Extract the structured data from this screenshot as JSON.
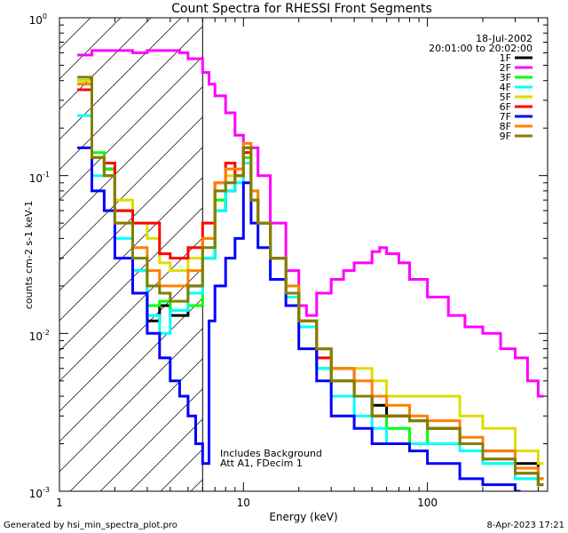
{
  "chart_data": {
    "type": "line",
    "title": "Count Spectra for RHESSI Front Segments",
    "xlabel": "Energy (keV)",
    "ylabel": "counts cm-2 s-1 keV-1",
    "xscale": "log",
    "yscale": "log",
    "xlim": [
      1,
      450
    ],
    "ylim": [
      0.001,
      1
    ],
    "x_tick_labels": [
      "1",
      "10",
      "100"
    ],
    "y_tick_labels": [
      {
        "base": "10",
        "exp": "0"
      },
      {
        "base": "10",
        "exp": "-1"
      },
      {
        "base": "10",
        "exp": "-2"
      },
      {
        "base": "10",
        "exp": "-3"
      }
    ],
    "date": "18-Jul-2002",
    "time_range": "20:01:00 to 20:02:00",
    "annotation_lines": [
      "Includes Background",
      "Att A1, FDecim 1"
    ],
    "threshold_keV": 6,
    "footer_left": "Generated by hsi_min_spectra_plot.pro",
    "footer_right": "8-Apr-2023 17:21",
    "series": [
      {
        "name": "1F",
        "color": "#000000",
        "points": [
          [
            1.25,
            0.4
          ],
          [
            1.5,
            0.13
          ],
          [
            1.75,
            0.11
          ],
          [
            2,
            0.06
          ],
          [
            2.5,
            0.025
          ],
          [
            3,
            0.012
          ],
          [
            3.5,
            0.015
          ],
          [
            4,
            0.013
          ],
          [
            5,
            0.02
          ],
          [
            6,
            0.03
          ],
          [
            7,
            0.06
          ],
          [
            8,
            0.08
          ],
          [
            9,
            0.1
          ],
          [
            10,
            0.15
          ],
          [
            11,
            0.07
          ],
          [
            12,
            0.05
          ],
          [
            14,
            0.03
          ],
          [
            17,
            0.018
          ],
          [
            20,
            0.012
          ],
          [
            25,
            0.008
          ],
          [
            30,
            0.006
          ],
          [
            40,
            0.004
          ],
          [
            50,
            0.0035
          ],
          [
            60,
            0.003
          ],
          [
            80,
            0.0028
          ],
          [
            100,
            0.0025
          ],
          [
            150,
            0.002
          ],
          [
            200,
            0.0018
          ],
          [
            300,
            0.0015
          ],
          [
            400,
            0.0012
          ]
        ]
      },
      {
        "name": "2F",
        "color": "#ff00ff",
        "points": [
          [
            1.25,
            0.58
          ],
          [
            1.5,
            0.62
          ],
          [
            2,
            0.62
          ],
          [
            2.5,
            0.6
          ],
          [
            3,
            0.62
          ],
          [
            3.5,
            0.62
          ],
          [
            4,
            0.62
          ],
          [
            4.5,
            0.6
          ],
          [
            5,
            0.55
          ],
          [
            6,
            0.45
          ],
          [
            6.5,
            0.38
          ],
          [
            7,
            0.32
          ],
          [
            8,
            0.25
          ],
          [
            9,
            0.18
          ],
          [
            10,
            0.15
          ],
          [
            12,
            0.1
          ],
          [
            14,
            0.05
          ],
          [
            17,
            0.025
          ],
          [
            20,
            0.015
          ],
          [
            22,
            0.013
          ],
          [
            25,
            0.018
          ],
          [
            30,
            0.022
          ],
          [
            35,
            0.025
          ],
          [
            40,
            0.028
          ],
          [
            50,
            0.033
          ],
          [
            55,
            0.035
          ],
          [
            60,
            0.032
          ],
          [
            70,
            0.028
          ],
          [
            80,
            0.022
          ],
          [
            100,
            0.017
          ],
          [
            130,
            0.013
          ],
          [
            160,
            0.011
          ],
          [
            200,
            0.01
          ],
          [
            250,
            0.008
          ],
          [
            300,
            0.007
          ],
          [
            350,
            0.005
          ],
          [
            400,
            0.004
          ]
        ]
      },
      {
        "name": "3F",
        "color": "#00ff00",
        "points": [
          [
            1.25,
            0.4
          ],
          [
            1.5,
            0.14
          ],
          [
            1.75,
            0.11
          ],
          [
            2,
            0.06
          ],
          [
            2.5,
            0.03
          ],
          [
            3,
            0.015
          ],
          [
            3.5,
            0.016
          ],
          [
            4,
            0.014
          ],
          [
            5,
            0.015
          ],
          [
            6,
            0.03
          ],
          [
            7,
            0.07
          ],
          [
            8,
            0.09
          ],
          [
            9,
            0.1
          ],
          [
            10,
            0.13
          ],
          [
            11,
            0.08
          ],
          [
            12,
            0.05
          ],
          [
            14,
            0.03
          ],
          [
            17,
            0.02
          ],
          [
            20,
            0.012
          ],
          [
            25,
            0.006
          ],
          [
            30,
            0.005
          ],
          [
            40,
            0.004
          ],
          [
            50,
            0.003
          ],
          [
            60,
            0.0025
          ],
          [
            80,
            0.002
          ],
          [
            100,
            0.0025
          ],
          [
            150,
            0.002
          ],
          [
            200,
            0.0015
          ],
          [
            300,
            0.0012
          ],
          [
            400,
            0.0011
          ]
        ]
      },
      {
        "name": "4F",
        "color": "#00ffff",
        "points": [
          [
            1.25,
            0.24
          ],
          [
            1.5,
            0.1
          ],
          [
            1.75,
            0.1
          ],
          [
            2,
            0.04
          ],
          [
            2.5,
            0.025
          ],
          [
            3,
            0.013
          ],
          [
            3.5,
            0.01
          ],
          [
            4,
            0.014
          ],
          [
            5,
            0.018
          ],
          [
            6,
            0.03
          ],
          [
            7,
            0.06
          ],
          [
            8,
            0.08
          ],
          [
            9,
            0.09
          ],
          [
            10,
            0.12
          ],
          [
            11,
            0.07
          ],
          [
            12,
            0.05
          ],
          [
            14,
            0.03
          ],
          [
            17,
            0.017
          ],
          [
            20,
            0.011
          ],
          [
            25,
            0.006
          ],
          [
            30,
            0.004
          ],
          [
            40,
            0.003
          ],
          [
            50,
            0.0025
          ],
          [
            60,
            0.002
          ],
          [
            80,
            0.002
          ],
          [
            100,
            0.002
          ],
          [
            150,
            0.0018
          ],
          [
            200,
            0.0015
          ],
          [
            300,
            0.0012
          ],
          [
            400,
            0.0011
          ]
        ]
      },
      {
        "name": "5F",
        "color": "#dddd00",
        "points": [
          [
            1.25,
            0.4
          ],
          [
            1.5,
            0.13
          ],
          [
            1.75,
            0.1
          ],
          [
            2,
            0.07
          ],
          [
            2.5,
            0.05
          ],
          [
            3,
            0.04
          ],
          [
            3.5,
            0.028
          ],
          [
            4,
            0.025
          ],
          [
            5,
            0.03
          ],
          [
            6,
            0.04
          ],
          [
            7,
            0.08
          ],
          [
            8,
            0.1
          ],
          [
            9,
            0.11
          ],
          [
            10,
            0.14
          ],
          [
            11,
            0.07
          ],
          [
            12,
            0.05
          ],
          [
            14,
            0.03
          ],
          [
            17,
            0.018
          ],
          [
            20,
            0.012
          ],
          [
            25,
            0.008
          ],
          [
            30,
            0.006
          ],
          [
            40,
            0.006
          ],
          [
            50,
            0.005
          ],
          [
            60,
            0.004
          ],
          [
            80,
            0.004
          ],
          [
            100,
            0.004
          ],
          [
            150,
            0.003
          ],
          [
            200,
            0.0025
          ],
          [
            300,
            0.0018
          ],
          [
            400,
            0.0015
          ]
        ]
      },
      {
        "name": "6F",
        "color": "#ff0000",
        "points": [
          [
            1.25,
            0.35
          ],
          [
            1.5,
            0.13
          ],
          [
            1.75,
            0.12
          ],
          [
            2,
            0.06
          ],
          [
            2.5,
            0.05
          ],
          [
            3,
            0.05
          ],
          [
            3.5,
            0.032
          ],
          [
            4,
            0.03
          ],
          [
            5,
            0.035
          ],
          [
            6,
            0.05
          ],
          [
            7,
            0.09
          ],
          [
            8,
            0.12
          ],
          [
            9,
            0.1
          ],
          [
            10,
            0.14
          ],
          [
            11,
            0.07
          ],
          [
            12,
            0.05
          ],
          [
            14,
            0.03
          ],
          [
            17,
            0.018
          ],
          [
            20,
            0.012
          ],
          [
            25,
            0.007
          ],
          [
            30,
            0.005
          ],
          [
            40,
            0.004
          ],
          [
            50,
            0.003
          ],
          [
            60,
            0.003
          ],
          [
            80,
            0.0028
          ],
          [
            100,
            0.0025
          ],
          [
            150,
            0.002
          ],
          [
            200,
            0.0016
          ],
          [
            300,
            0.0013
          ],
          [
            400,
            0.0011
          ]
        ]
      },
      {
        "name": "7F",
        "color": "#0000ff",
        "points": [
          [
            1.25,
            0.15
          ],
          [
            1.5,
            0.08
          ],
          [
            1.75,
            0.06
          ],
          [
            2,
            0.03
          ],
          [
            2.5,
            0.018
          ],
          [
            3,
            0.01
          ],
          [
            3.5,
            0.007
          ],
          [
            4,
            0.005
          ],
          [
            4.5,
            0.004
          ],
          [
            5,
            0.003
          ],
          [
            5.5,
            0.002
          ],
          [
            6,
            0.0015
          ],
          [
            6.5,
            0.012
          ],
          [
            7,
            0.02
          ],
          [
            8,
            0.03
          ],
          [
            9,
            0.04
          ],
          [
            10,
            0.09
          ],
          [
            11,
            0.05
          ],
          [
            12,
            0.035
          ],
          [
            14,
            0.022
          ],
          [
            17,
            0.015
          ],
          [
            20,
            0.008
          ],
          [
            25,
            0.005
          ],
          [
            30,
            0.003
          ],
          [
            40,
            0.0025
          ],
          [
            50,
            0.002
          ],
          [
            60,
            0.002
          ],
          [
            80,
            0.0018
          ],
          [
            100,
            0.0015
          ],
          [
            150,
            0.0012
          ],
          [
            200,
            0.0011
          ],
          [
            300,
            0.001
          ]
        ]
      },
      {
        "name": "8F",
        "color": "#ff8000",
        "points": [
          [
            1.25,
            0.38
          ],
          [
            1.5,
            0.13
          ],
          [
            1.75,
            0.1
          ],
          [
            2,
            0.05
          ],
          [
            2.5,
            0.035
          ],
          [
            3,
            0.025
          ],
          [
            3.5,
            0.02
          ],
          [
            4,
            0.02
          ],
          [
            5,
            0.025
          ],
          [
            6,
            0.04
          ],
          [
            7,
            0.09
          ],
          [
            8,
            0.11
          ],
          [
            9,
            0.11
          ],
          [
            10,
            0.16
          ],
          [
            11,
            0.08
          ],
          [
            12,
            0.05
          ],
          [
            14,
            0.03
          ],
          [
            17,
            0.02
          ],
          [
            20,
            0.012
          ],
          [
            25,
            0.008
          ],
          [
            30,
            0.006
          ],
          [
            40,
            0.005
          ],
          [
            50,
            0.004
          ],
          [
            60,
            0.0035
          ],
          [
            80,
            0.003
          ],
          [
            100,
            0.0028
          ],
          [
            150,
            0.0022
          ],
          [
            200,
            0.0018
          ],
          [
            300,
            0.0014
          ],
          [
            400,
            0.0012
          ]
        ]
      },
      {
        "name": "9F",
        "color": "#808000",
        "points": [
          [
            1.25,
            0.42
          ],
          [
            1.5,
            0.13
          ],
          [
            1.75,
            0.1
          ],
          [
            2,
            0.05
          ],
          [
            2.5,
            0.03
          ],
          [
            3,
            0.02
          ],
          [
            3.5,
            0.018
          ],
          [
            4,
            0.016
          ],
          [
            5,
            0.02
          ],
          [
            6,
            0.035
          ],
          [
            7,
            0.08
          ],
          [
            8,
            0.09
          ],
          [
            9,
            0.1
          ],
          [
            10,
            0.15
          ],
          [
            11,
            0.07
          ],
          [
            12,
            0.05
          ],
          [
            14,
            0.03
          ],
          [
            17,
            0.018
          ],
          [
            20,
            0.012
          ],
          [
            25,
            0.008
          ],
          [
            30,
            0.005
          ],
          [
            40,
            0.004
          ],
          [
            50,
            0.003
          ],
          [
            60,
            0.003
          ],
          [
            80,
            0.0028
          ],
          [
            100,
            0.0025
          ],
          [
            150,
            0.002
          ],
          [
            200,
            0.0016
          ],
          [
            300,
            0.0013
          ],
          [
            400,
            0.0011
          ]
        ]
      }
    ]
  }
}
